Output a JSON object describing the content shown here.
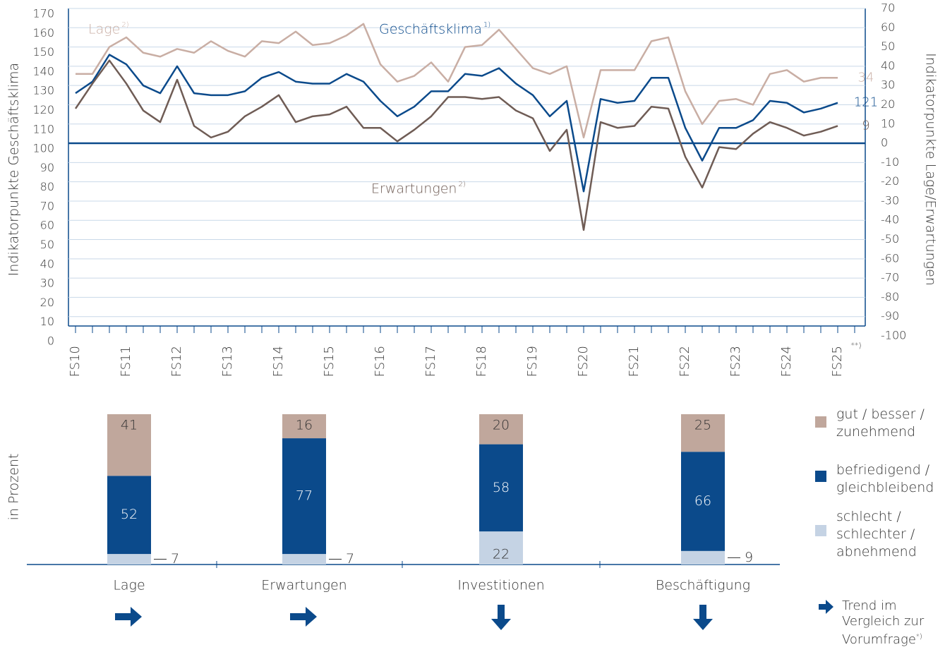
{
  "chart_data": [
    {
      "type": "line",
      "y_label": "Indikatorpunkte Geschäftsklima",
      "y2_label": "Indikatorpunkte Lage/Erwartungen",
      "categories": [
        "FS10",
        null,
        null,
        "FS11",
        null,
        null,
        "FS12",
        null,
        null,
        "FS13",
        null,
        null,
        "FS14",
        null,
        null,
        "FS15",
        null,
        null,
        "FS16",
        null,
        null,
        "FS17",
        null,
        null,
        "FS18",
        null,
        null,
        "FS19",
        null,
        null,
        "FS20",
        null,
        null,
        "FS21",
        null,
        null,
        "FS22",
        null,
        null,
        "FS23",
        null,
        null,
        "FS24",
        null,
        null,
        "FS25",
        "**)"
      ],
      "ylim": [
        0,
        170
      ],
      "yticks": [
        0,
        10,
        20,
        30,
        40,
        50,
        60,
        70,
        80,
        90,
        100,
        110,
        120,
        130,
        140,
        150,
        160,
        170
      ],
      "y2lim": [
        -100,
        70
      ],
      "y2ticks": [
        -100,
        -90,
        -80,
        -70,
        -60,
        -50,
        -40,
        -30,
        -20,
        -10,
        0,
        10,
        20,
        30,
        40,
        50,
        60,
        70
      ],
      "grid": true,
      "reference_line": 100,
      "series": [
        {
          "name": "Lage",
          "note": "2)",
          "color": "#c9aea4",
          "axis": "y2",
          "values": [
            36,
            36,
            50,
            55,
            47,
            45,
            49,
            47,
            53,
            48,
            45,
            53,
            52,
            58,
            51,
            52,
            56,
            62,
            41,
            32,
            35,
            42,
            32,
            50,
            51,
            59,
            49,
            39,
            36,
            40,
            3,
            38,
            38,
            38,
            53,
            55,
            27,
            10,
            22,
            23,
            20,
            36,
            38,
            32,
            34,
            34,
            null
          ]
        },
        {
          "name": "Geschäftsklima",
          "note": "1)",
          "color": "#0b4a8b",
          "axis": "y",
          "values": [
            126,
            132,
            146,
            141,
            130,
            126,
            140,
            126,
            125,
            125,
            127,
            134,
            137,
            132,
            131,
            131,
            136,
            132,
            122,
            114,
            119,
            127,
            127,
            136,
            135,
            139,
            131,
            125,
            114,
            122,
            75,
            123,
            121,
            122,
            134,
            134,
            108,
            91,
            108,
            108,
            112,
            122,
            121,
            116,
            118,
            121,
            null
          ]
        },
        {
          "name": "Erwartungen",
          "note": "2)",
          "color": "#6f5c55",
          "axis": "y2",
          "values": [
            18,
            31,
            43,
            31,
            17,
            11,
            33,
            9,
            3,
            6,
            14,
            19,
            25,
            11,
            14,
            15,
            19,
            8,
            8,
            1,
            7,
            14,
            24,
            24,
            23,
            24,
            17,
            13,
            -4,
            7,
            -45,
            11,
            8,
            9,
            19,
            18,
            -7,
            -23,
            -2,
            -3,
            5,
            11,
            8,
            4,
            6,
            9,
            null
          ]
        }
      ]
    },
    {
      "type": "stacked_bar",
      "y_label": "in Prozent",
      "categories": [
        "Lage",
        "Erwartungen",
        "Investitionen",
        "Beschäftigung"
      ],
      "ylim": [
        0,
        100
      ],
      "series": [
        {
          "name": "schlecht / schlechter / abnehmend",
          "color": "#c5d3e4",
          "values": [
            7,
            7,
            22,
            9
          ]
        },
        {
          "name": "befriedigend / gleichbleibend",
          "color": "#0b4a8b",
          "values": [
            52,
            77,
            58,
            66
          ]
        },
        {
          "name": "gut / besser / zunehmend",
          "color": "#c0a79c",
          "values": [
            41,
            16,
            20,
            25
          ]
        }
      ],
      "trend": [
        "right",
        "right",
        "down",
        "down"
      ],
      "trend_legend": "Trend im Vergleich zur Vorumfrage",
      "trend_legend_note": "*)"
    }
  ]
}
